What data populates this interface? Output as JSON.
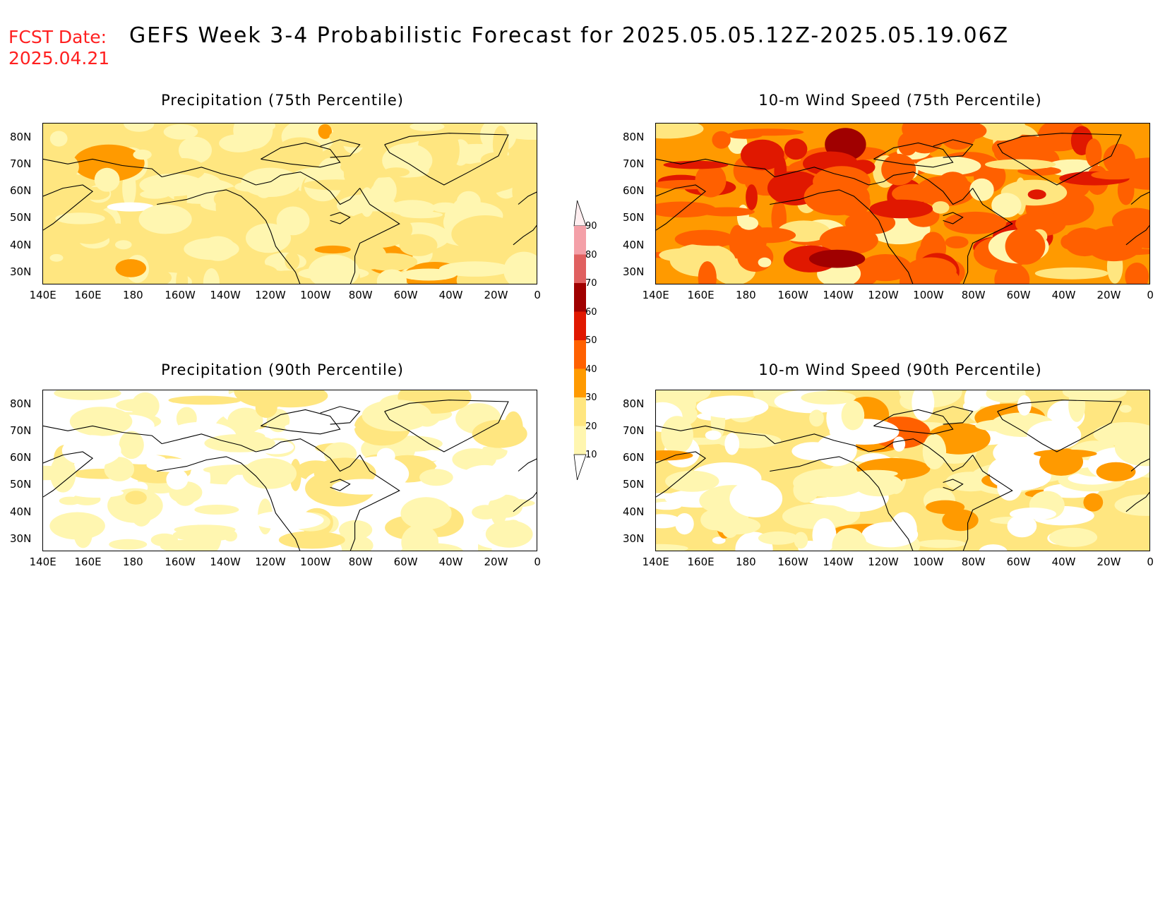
{
  "header": {
    "fcst_line1": "FCST Date:",
    "fcst_line2": "2025.04.21",
    "title": "GEFS Week 3-4 Probabilistic Forecast for 2025.05.05.12Z-2025.05.19.06Z"
  },
  "lon_labels": [
    "140E",
    "160E",
    "180",
    "160W",
    "140W",
    "120W",
    "100W",
    "80W",
    "60W",
    "40W",
    "20W",
    "0"
  ],
  "lat_labels": [
    "80N",
    "70N",
    "60N",
    "50N",
    "40N",
    "30N"
  ],
  "panels": [
    {
      "title": "Precipitation (75th Percentile)",
      "base": "#ffe680",
      "theme": "precip75"
    },
    {
      "title": "10-m Wind Speed (75th Percentile)",
      "base": "#ff9a00",
      "theme": "wind75"
    },
    {
      "title": "Precipitation (90th Percentile)",
      "base": "#ffffff",
      "theme": "precip90"
    },
    {
      "title": "10-m Wind Speed (90th Percentile)",
      "base": "#ffe680",
      "theme": "wind90"
    }
  ],
  "colorbar": {
    "levels": [
      "90",
      "80",
      "70",
      "60",
      "50",
      "40",
      "30",
      "20",
      "10"
    ],
    "colors": [
      "#ffeef0",
      "#f4a0a8",
      "#e06060",
      "#a00000",
      "#e01800",
      "#ff6000",
      "#ff9a00",
      "#ffe680",
      "#fff6b0"
    ]
  }
}
